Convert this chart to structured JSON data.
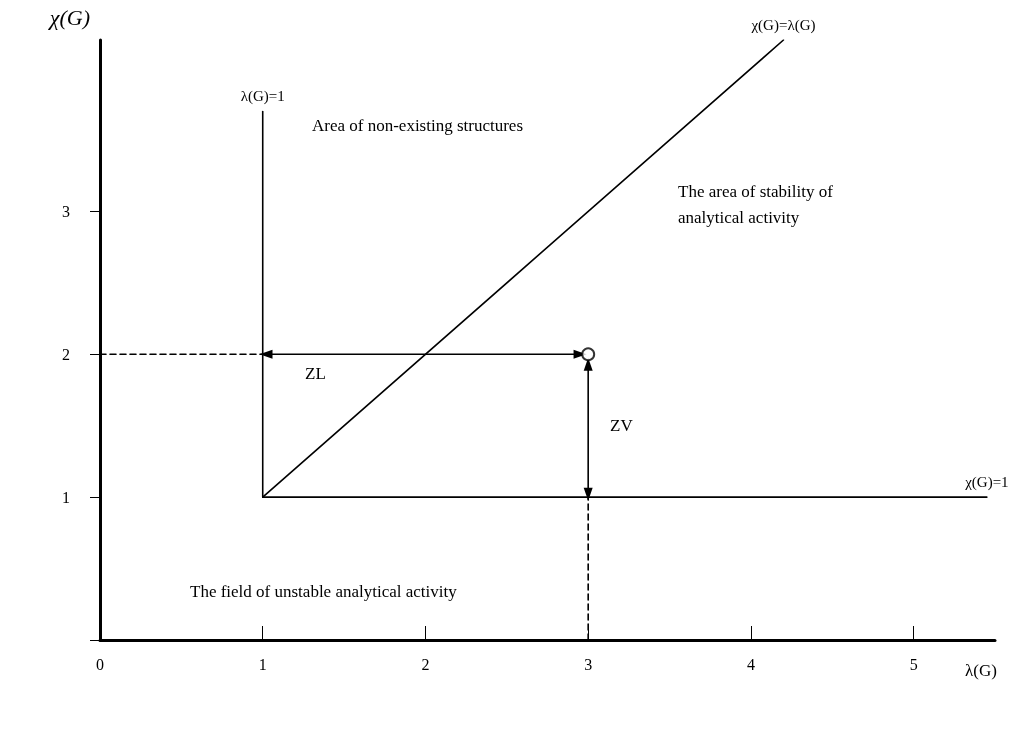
{
  "chart_data": {
    "type": "line",
    "xlabel": "λ(G)",
    "ylabel": "χ(G)",
    "xlim": [
      0,
      5.5
    ],
    "xticks": [
      0,
      1,
      2,
      3,
      4,
      5
    ],
    "ylim": [
      0,
      4.2
    ],
    "yticks": [
      {
        "value": 0,
        "label": null
      },
      1,
      2,
      3
    ],
    "grid": false,
    "legend": false,
    "marker": "none",
    "line_style": "solid",
    "series": [
      {
        "name": "χ(G)=λ(G)",
        "color": "#000000",
        "x": [
          1,
          4.2
        ],
        "values": [
          1,
          4.2
        ]
      },
      {
        "name": "λ(G)=1",
        "color": "#000000",
        "x": [
          1,
          1
        ],
        "values": [
          1,
          3.7
        ]
      },
      {
        "name": "χ(G)=1",
        "color": "#000000",
        "x": [
          1,
          5.45
        ],
        "values": [
          1,
          1
        ]
      },
      {
        "color": "#000000",
        "x": [
          0,
          1
        ],
        "values": [
          2,
          2
        ],
        "line_style": "dashed"
      },
      {
        "color": "#000000",
        "x": [
          3,
          3
        ],
        "values": [
          0,
          1
        ],
        "line_style": "dashed"
      },
      {
        "color": "#000000",
        "x": [
          1.02,
          2.95
        ],
        "values": [
          2,
          2
        ],
        "marker": "triangle"
      },
      {
        "color": "#000000",
        "x": [
          3,
          3
        ],
        "values": [
          1.93,
          1.02
        ],
        "marker": "triangle"
      },
      {
        "type": "scatter",
        "color": "#000000",
        "x": [
          3
        ],
        "values": [
          2
        ],
        "marker": "circle"
      }
    ],
    "annotations": [
      "Area of non-existing structures",
      "The area of stability of\nanalytical activity",
      "The field of unstable analytical activity",
      "ZL",
      "ZV"
    ]
  }
}
